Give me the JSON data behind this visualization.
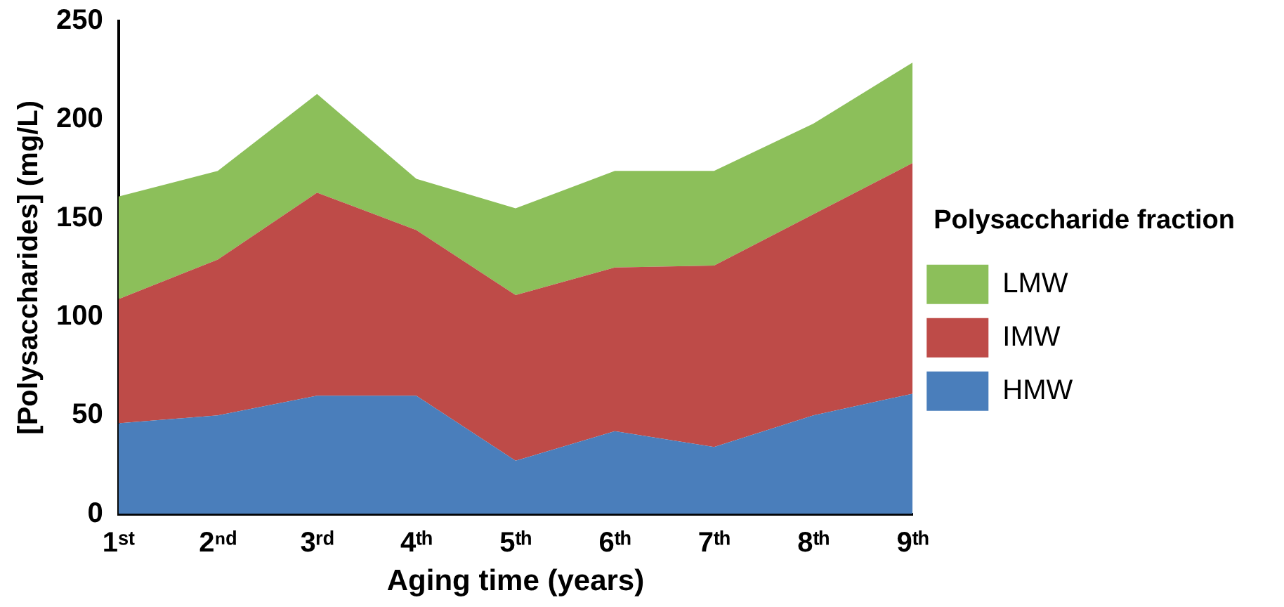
{
  "chart_data": {
    "type": "area",
    "stacked": true,
    "xlabel": "Aging time (years)",
    "ylabel": "[Polysaccharides] (mg/L)",
    "legend_title": "Polysaccharide fraction",
    "legend": "right",
    "grid": false,
    "categories": [
      "1ˢᵗ",
      "2ⁿᵈ",
      "3ʳᵈ",
      "4ᵗʰ",
      "5ᵗʰ",
      "6ᵗʰ",
      "7ᵗʰ",
      "8ᵗʰ",
      "9ᵗʰ"
    ],
    "ylim": [
      0,
      250
    ],
    "yticks": [
      0,
      50,
      100,
      150,
      200,
      250
    ],
    "series": [
      {
        "name": "HMW",
        "color": "#4a7ebb",
        "values": [
          46,
          50,
          60,
          60,
          27,
          42,
          34,
          50,
          61
        ]
      },
      {
        "name": "IMW",
        "color": "#be4b48",
        "values": [
          63,
          79,
          103,
          84,
          84,
          83,
          92,
          102,
          117
        ]
      },
      {
        "name": "LMW",
        "color": "#8cbf5a",
        "values": [
          52,
          45,
          50,
          26,
          44,
          49,
          48,
          46,
          51
        ]
      }
    ]
  }
}
